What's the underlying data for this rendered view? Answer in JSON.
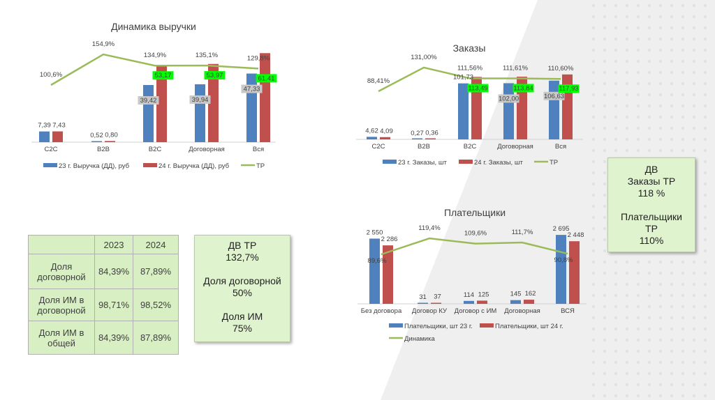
{
  "colors": {
    "c23": "#4e81bd",
    "c24": "#c0504d",
    "line": "#9bbb59",
    "hl24": "#00ff00",
    "hl23": "#c8c8c8"
  },
  "chart_data": [
    {
      "type": "bar+line",
      "title": "Динамика выручки",
      "categories": [
        "C2C",
        "B2B",
        "B2C",
        "Договорная",
        "Вся"
      ],
      "series": [
        {
          "name": "23 г. Выручка (ДД), руб",
          "values": [
            7.39,
            0.52,
            39.42,
            39.94,
            47.33
          ],
          "labels": [
            "7,39",
            "0,52",
            "39,42",
            "39,94",
            "47,33"
          ]
        },
        {
          "name": "24 г. Выручка (ДД), руб",
          "values": [
            7.43,
            0.8,
            53.17,
            53.97,
            61.41
          ],
          "labels": [
            "7,43",
            "0,80",
            "53,17",
            "53,97",
            "61,41"
          ]
        },
        {
          "name": "ТР",
          "values": [
            100.6,
            154.9,
            134.9,
            135.1,
            129.8
          ],
          "labels": [
            "100,6%",
            "154,9%",
            "134,9%",
            "135,1%",
            "129,8%"
          ]
        }
      ]
    },
    {
      "type": "bar+line",
      "title": "Заказы",
      "categories": [
        "C2C",
        "B2B",
        "B2C",
        "Договорная",
        "Вся"
      ],
      "series": [
        {
          "name": "23 г. Заказы, шт",
          "values": [
            4.62,
            0.27,
            101.73,
            102.0,
            106.63
          ],
          "labels": [
            "4,62",
            "0,27",
            "101,73",
            "102,00",
            "106,63"
          ]
        },
        {
          "name": "24 г. Заказы, шт",
          "values": [
            4.09,
            0.36,
            113.49,
            113.84,
            117.93
          ],
          "labels": [
            "4,09",
            "0,36",
            "113,49",
            "113,84",
            "117,93"
          ]
        },
        {
          "name": "ТР",
          "values": [
            88.41,
            131.0,
            111.56,
            111.61,
            110.6
          ],
          "labels": [
            "88,41%",
            "131,00%",
            "111,56%",
            "111,61%",
            "110,60%"
          ]
        }
      ]
    },
    {
      "type": "bar+line",
      "title": "Плательщики",
      "categories": [
        "Без договора",
        "Договор КУ",
        "Договор с ИМ",
        "Договорная",
        "ВСЯ"
      ],
      "series": [
        {
          "name": "Плательщики, шт 23 г.",
          "values": [
            2550,
            31,
            114,
            145,
            2695
          ],
          "labels": [
            "2 550",
            "31",
            "114",
            "145",
            "2 695"
          ]
        },
        {
          "name": "Плательщики, шт 24 г.",
          "values": [
            2286,
            37,
            125,
            162,
            2448
          ],
          "labels": [
            "2 286",
            "37",
            "125",
            "162",
            "2 448"
          ]
        },
        {
          "name": "Динамика",
          "values": [
            89.6,
            119.4,
            109.6,
            111.7,
            90.8
          ],
          "labels": [
            "89,6%",
            "119,4%",
            "109,6%",
            "111,7%",
            "90,8%"
          ]
        }
      ]
    }
  ],
  "table": {
    "headers": [
      "",
      "2023",
      "2024"
    ],
    "rows": [
      [
        "Доля договорной",
        "84,39%",
        "87,89%"
      ],
      [
        "Доля ИМ в договорной",
        "98,71%",
        "98,52%"
      ],
      [
        "Доля ИМ в общей",
        "84,39%",
        "87,89%"
      ]
    ]
  },
  "box1": [
    "ДВ ТР",
    "132,7%",
    "",
    "Доля договорной",
    "50%",
    "",
    "Доля ИМ",
    "75%"
  ],
  "box2": [
    "ДВ",
    "Заказы ТР",
    "118 %",
    "",
    "Плательщики",
    "ТР",
    "110%"
  ]
}
